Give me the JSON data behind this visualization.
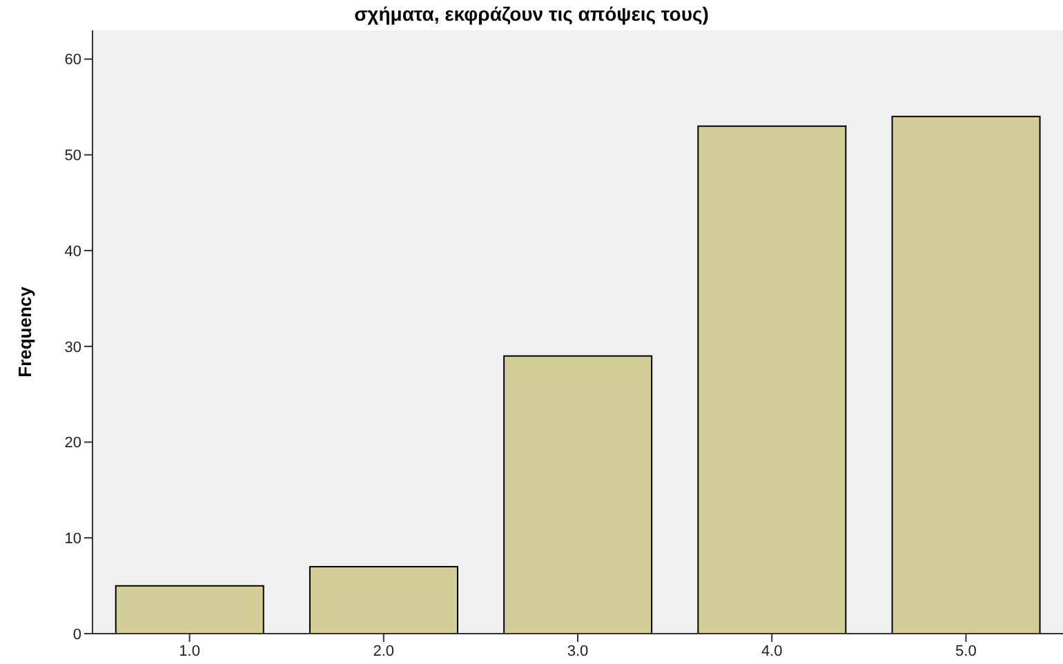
{
  "chart_data": {
    "type": "bar",
    "title": "σχήματα, εκφράζουν τις απόψεις τους)",
    "categories": [
      "1.0",
      "2.0",
      "3.0",
      "4.0",
      "5.0"
    ],
    "values": [
      5,
      7,
      29,
      53,
      54
    ],
    "color": "#d3ce97",
    "ylabel": "Frequency",
    "ylim": [
      0,
      63
    ],
    "yticks": [
      0,
      10,
      20,
      30,
      40,
      50,
      60
    ],
    "grid": false,
    "legend": false
  }
}
